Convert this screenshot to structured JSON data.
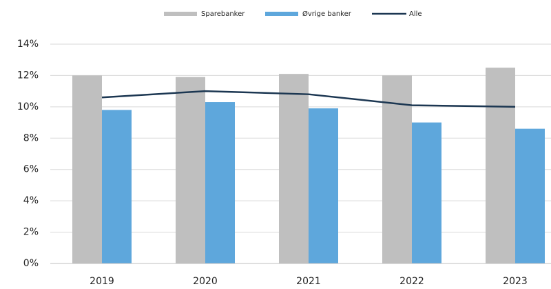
{
  "chart_data": {
    "type": "bar",
    "categories": [
      "2019",
      "2020",
      "2021",
      "2022",
      "2023"
    ],
    "series": [
      {
        "name": "Sparebanker",
        "color": "#bfbfbf",
        "values": [
          12.0,
          11.9,
          12.1,
          12.0,
          12.5
        ]
      },
      {
        "name": "Øvrige banker",
        "color": "#5ea7dc",
        "values": [
          9.8,
          10.3,
          9.9,
          9.0,
          8.6
        ]
      },
      {
        "name": "Alle",
        "type": "line",
        "color": "#1c3752",
        "values": [
          10.6,
          11.0,
          10.8,
          10.1,
          10.0
        ]
      }
    ],
    "ylim": [
      0,
      14
    ],
    "yticks": [
      {
        "value": 0,
        "label": "0%"
      },
      {
        "value": 2,
        "label": "2%"
      },
      {
        "value": 4,
        "label": "4%"
      },
      {
        "value": 6,
        "label": "6%"
      },
      {
        "value": 8,
        "label": "8%"
      },
      {
        "value": 10,
        "label": "10%"
      },
      {
        "value": 12,
        "label": "12%"
      },
      {
        "value": 14,
        "label": "14%"
      }
    ],
    "grid": true,
    "legend": "top"
  }
}
